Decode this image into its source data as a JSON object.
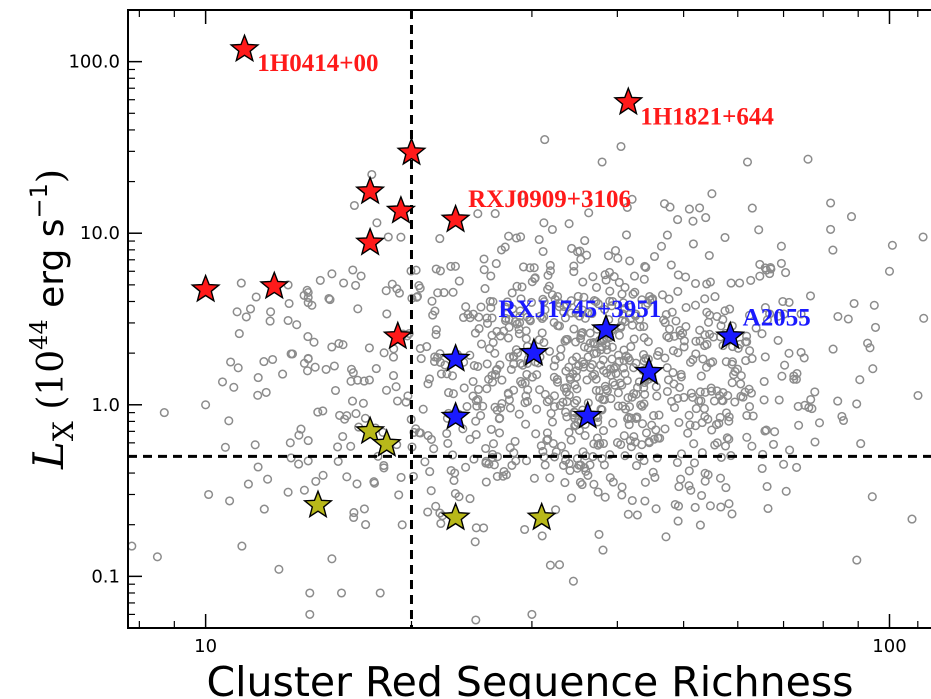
{
  "chart_data": {
    "type": "scatter",
    "xlabel": "Cluster Red Sequence Richness",
    "ylabel_parts": {
      "sym": "L",
      "sub": "X",
      "open": "(10",
      "sup": "44",
      "unit": " erg s",
      "unit_sup": "−1",
      "close": ")"
    },
    "x_scale": "log",
    "y_scale": "log",
    "xlim": [
      7.7,
      115
    ],
    "ylim": [
      0.05,
      200
    ],
    "x_ticks": [
      {
        "value": 10,
        "label": "10"
      },
      {
        "value": 100,
        "label": "100"
      }
    ],
    "y_ticks": [
      {
        "value": 0.1,
        "label": "0.1"
      },
      {
        "value": 1,
        "label": "1.0"
      },
      {
        "value": 10,
        "label": "10.0"
      },
      {
        "value": 100,
        "label": "100.0"
      }
    ],
    "reference_lines": {
      "x": 20,
      "y": 0.5
    },
    "colors": {
      "background_points": "#8c8c8c",
      "red": "#ff1a1a",
      "blue": "#1a1aff",
      "yellow": "#b8b81a",
      "dashed_line": "#000000"
    },
    "background_sample_seed": 12345,
    "background_sample_count": 900,
    "background_points_fixed": [
      [
        7.8,
        0.15
      ],
      [
        8.5,
        0.13
      ],
      [
        8.7,
        0.9
      ],
      [
        10,
        1.0
      ],
      [
        10.1,
        0.3
      ],
      [
        11.2,
        2.6
      ],
      [
        11.3,
        0.15
      ],
      [
        12.8,
        0.11
      ],
      [
        13.2,
        5.0
      ],
      [
        13.2,
        3.1
      ],
      [
        13.3,
        0.6
      ],
      [
        14.2,
        0.06
      ],
      [
        14.2,
        0.08
      ],
      [
        14.3,
        3.8
      ],
      [
        15.3,
        5.8
      ],
      [
        15.2,
        4.1
      ],
      [
        15.8,
        0.08
      ],
      [
        16.5,
        14.5
      ],
      [
        17.5,
        22.0
      ],
      [
        17.8,
        11.5
      ],
      [
        18.5,
        9.5
      ],
      [
        22.0,
        9.3
      ],
      [
        25.0,
        13.0
      ],
      [
        38.0,
        26.0
      ],
      [
        40.5,
        32.0
      ],
      [
        41.5,
        0.23
      ],
      [
        49.0,
        12.0
      ],
      [
        55.0,
        17.0
      ],
      [
        62.0,
        26.0
      ],
      [
        63.0,
        14.0
      ],
      [
        76.0,
        27.0
      ],
      [
        82.0,
        15.0
      ],
      [
        88.0,
        12.5
      ],
      [
        90.5,
        1.4
      ],
      [
        95.0,
        3.8
      ],
      [
        100.0,
        6.0
      ],
      [
        101.0,
        8.5
      ],
      [
        112.0,
        9.5
      ],
      [
        56.0,
        0.6
      ],
      [
        70.0,
        0.45
      ],
      [
        77.0,
        0.95
      ],
      [
        84.0,
        1.05
      ],
      [
        25.5,
        0.05
      ],
      [
        30.0,
        0.06
      ],
      [
        18.0,
        0.08
      ]
    ],
    "series": [
      {
        "name": "red",
        "color": "#ff1a1a",
        "points": [
          {
            "x": 11.4,
            "y": 118
          },
          {
            "x": 10.0,
            "y": 4.7
          },
          {
            "x": 12.6,
            "y": 4.9
          },
          {
            "x": 17.4,
            "y": 17.5
          },
          {
            "x": 17.4,
            "y": 8.8
          },
          {
            "x": 19.3,
            "y": 13.5
          },
          {
            "x": 19.1,
            "y": 2.5
          },
          {
            "x": 20.0,
            "y": 29.5
          },
          {
            "x": 23.2,
            "y": 12.0
          },
          {
            "x": 41.5,
            "y": 58.0
          }
        ]
      },
      {
        "name": "blue",
        "color": "#1a1aff",
        "points": [
          {
            "x": 23.2,
            "y": 1.85
          },
          {
            "x": 23.2,
            "y": 0.85
          },
          {
            "x": 30.2,
            "y": 2.0
          },
          {
            "x": 38.5,
            "y": 2.75
          },
          {
            "x": 36.2,
            "y": 0.86
          },
          {
            "x": 44.5,
            "y": 1.55
          },
          {
            "x": 58.5,
            "y": 2.5
          }
        ]
      },
      {
        "name": "yellow",
        "color": "#b8b81a",
        "points": [
          {
            "x": 14.6,
            "y": 0.26
          },
          {
            "x": 17.4,
            "y": 0.7
          },
          {
            "x": 18.4,
            "y": 0.59
          },
          {
            "x": 23.2,
            "y": 0.22
          },
          {
            "x": 31.0,
            "y": 0.22
          }
        ]
      }
    ],
    "annotations": [
      {
        "text": "1H0414+00",
        "x": 11.9,
        "y": 88,
        "color": "#ff1a1a"
      },
      {
        "text": "1H1821+644",
        "x": 43.2,
        "y": 43,
        "color": "#ff1a1a"
      },
      {
        "text": "RXJ0909+3106",
        "x": 24.2,
        "y": 14.2,
        "color": "#ff1a1a"
      },
      {
        "text": "RXJ1745+3951",
        "x": 26.8,
        "y": 3.25,
        "color": "#1a1aff"
      },
      {
        "text": "A2055",
        "x": 61.0,
        "y": 2.9,
        "color": "#1a1aff"
      }
    ]
  }
}
